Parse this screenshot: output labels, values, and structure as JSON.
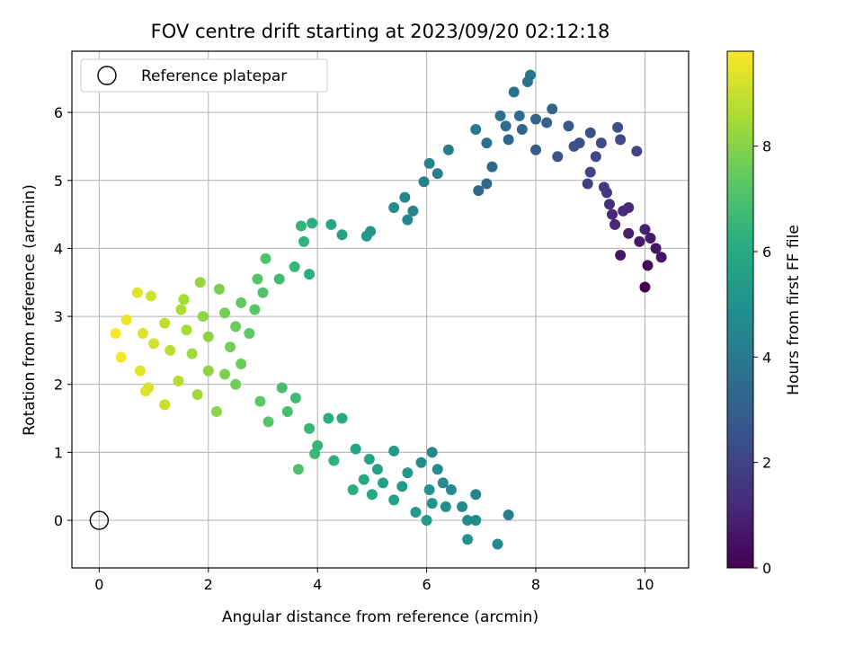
{
  "chart_data": {
    "type": "scatter",
    "title": "FOV centre drift starting at 2023/09/20 02:12:18",
    "xlabel": "Angular distance from reference (arcmin)",
    "ylabel": "Rotation from reference (arcmin)",
    "xlim": [
      -0.5,
      10.8
    ],
    "ylim": [
      -0.7,
      6.9
    ],
    "xticks": [
      0,
      2,
      4,
      6,
      8,
      10
    ],
    "yticks": [
      0,
      1,
      2,
      3,
      4,
      5,
      6
    ],
    "grid": true,
    "legend": {
      "location": "upper-left",
      "entries": [
        "Reference platepar"
      ]
    },
    "reference_point": {
      "x": 0,
      "y": 0,
      "label": "Reference platepar"
    },
    "colorbar": {
      "label": "Hours from first FF file",
      "colormap": "viridis",
      "range": [
        0,
        9.8
      ],
      "ticks": [
        0,
        2,
        4,
        6,
        8
      ]
    },
    "series": [
      {
        "points": [
          [
            10.0,
            3.43
          ],
          [
            10.3,
            3.87
          ],
          [
            10.05,
            3.75
          ],
          [
            9.55,
            3.9
          ],
          [
            10.2,
            4.0
          ],
          [
            10.0,
            4.28
          ],
          [
            9.7,
            4.22
          ],
          [
            9.45,
            4.35
          ],
          [
            9.6,
            4.55
          ],
          [
            9.35,
            4.65
          ],
          [
            9.3,
            4.82
          ],
          [
            9.85,
            5.43
          ],
          [
            9.55,
            5.6
          ],
          [
            9.5,
            5.78
          ],
          [
            9.2,
            5.55
          ],
          [
            9.1,
            5.35
          ],
          [
            9.0,
            5.12
          ],
          [
            8.8,
            5.55
          ],
          [
            8.6,
            5.8
          ],
          [
            8.3,
            6.05
          ],
          [
            8.0,
            5.9
          ],
          [
            7.9,
            6.55
          ],
          [
            7.85,
            6.45
          ],
          [
            7.6,
            6.3
          ],
          [
            7.35,
            5.95
          ],
          [
            7.1,
            5.55
          ],
          [
            6.9,
            5.75
          ],
          [
            7.2,
            5.2
          ],
          [
            7.5,
            5.6
          ],
          [
            7.75,
            5.75
          ],
          [
            8.0,
            5.45
          ],
          [
            8.4,
            5.35
          ],
          [
            7.1,
            4.95
          ],
          [
            6.95,
            4.85
          ],
          [
            6.4,
            5.45
          ],
          [
            6.05,
            5.25
          ],
          [
            6.2,
            5.1
          ],
          [
            5.95,
            4.98
          ],
          [
            5.75,
            4.55
          ],
          [
            5.65,
            4.42
          ],
          [
            5.6,
            4.75
          ],
          [
            5.4,
            4.6
          ],
          [
            4.97,
            4.25
          ],
          [
            4.9,
            4.18
          ],
          [
            4.45,
            4.2
          ],
          [
            4.25,
            4.35
          ],
          [
            3.9,
            4.37
          ],
          [
            3.7,
            4.33
          ],
          [
            3.75,
            4.1
          ],
          [
            3.85,
            3.62
          ],
          [
            3.58,
            3.73
          ],
          [
            3.3,
            3.55
          ],
          [
            3.05,
            3.85
          ],
          [
            2.85,
            3.1
          ],
          [
            2.75,
            2.75
          ],
          [
            2.5,
            2.85
          ],
          [
            2.2,
            3.4
          ],
          [
            1.85,
            3.5
          ],
          [
            1.5,
            3.1
          ],
          [
            1.2,
            2.9
          ],
          [
            0.95,
            3.3
          ],
          [
            0.7,
            3.35
          ],
          [
            0.5,
            2.95
          ],
          [
            0.3,
            2.75
          ],
          [
            0.4,
            2.4
          ],
          [
            0.75,
            2.2
          ],
          [
            0.9,
            1.95
          ],
          [
            0.85,
            1.9
          ],
          [
            1.2,
            1.7
          ],
          [
            1.45,
            2.05
          ],
          [
            1.8,
            1.85
          ],
          [
            2.15,
            1.6
          ],
          [
            2.5,
            2.0
          ],
          [
            2.95,
            1.75
          ],
          [
            3.1,
            1.45
          ],
          [
            3.45,
            1.6
          ],
          [
            3.85,
            1.35
          ],
          [
            4.2,
            1.5
          ],
          [
            4.45,
            1.5
          ],
          [
            3.65,
            0.75
          ],
          [
            3.95,
            0.98
          ],
          [
            4.3,
            0.88
          ],
          [
            4.7,
            1.05
          ],
          [
            4.95,
            0.9
          ],
          [
            5.1,
            0.75
          ],
          [
            5.4,
            1.02
          ],
          [
            5.65,
            0.7
          ],
          [
            5.9,
            0.85
          ],
          [
            6.1,
            1.0
          ],
          [
            6.2,
            0.75
          ],
          [
            6.3,
            0.55
          ],
          [
            6.45,
            0.45
          ],
          [
            6.05,
            0.45
          ],
          [
            6.1,
            0.25
          ],
          [
            5.8,
            0.12
          ],
          [
            5.4,
            0.3
          ],
          [
            5.0,
            0.38
          ],
          [
            4.65,
            0.45
          ],
          [
            6.0,
            0.0
          ],
          [
            6.35,
            0.2
          ],
          [
            6.65,
            0.2
          ],
          [
            6.75,
            0.0
          ],
          [
            6.9,
            0.38
          ],
          [
            6.9,
            0.0
          ],
          [
            6.75,
            -0.28
          ],
          [
            7.3,
            -0.35
          ],
          [
            7.5,
            0.08
          ],
          [
            1.7,
            2.45
          ],
          [
            2.0,
            2.2
          ],
          [
            2.3,
            2.15
          ],
          [
            2.6,
            2.3
          ],
          [
            1.3,
            2.5
          ],
          [
            1.0,
            2.6
          ],
          [
            0.8,
            2.75
          ],
          [
            1.6,
            2.8
          ],
          [
            2.0,
            2.7
          ],
          [
            2.4,
            2.55
          ],
          [
            3.0,
            3.35
          ],
          [
            2.9,
            3.55
          ],
          [
            2.6,
            3.2
          ],
          [
            1.55,
            3.25
          ],
          [
            1.9,
            3.0
          ],
          [
            2.3,
            3.05
          ],
          [
            3.35,
            1.95
          ],
          [
            3.6,
            1.8
          ],
          [
            4.0,
            1.1
          ],
          [
            4.85,
            0.6
          ],
          [
            5.2,
            0.55
          ],
          [
            5.55,
            0.5
          ],
          [
            8.7,
            5.5
          ],
          [
            9.0,
            5.7
          ],
          [
            8.2,
            5.85
          ],
          [
            7.7,
            5.95
          ],
          [
            7.45,
            5.8
          ],
          [
            9.4,
            4.5
          ],
          [
            9.7,
            4.6
          ],
          [
            9.9,
            4.1
          ],
          [
            10.1,
            4.15
          ],
          [
            9.25,
            4.9
          ],
          [
            8.95,
            4.95
          ]
        ]
      }
    ]
  }
}
